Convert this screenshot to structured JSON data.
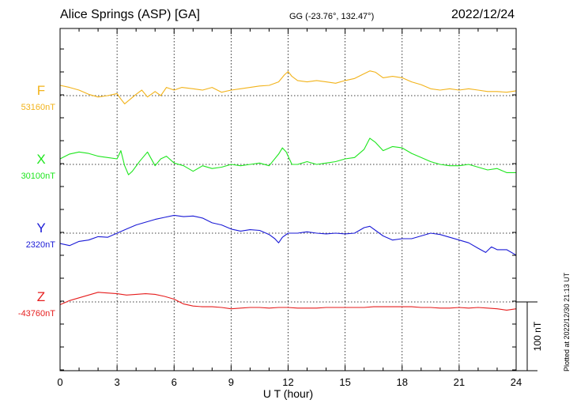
{
  "header": {
    "title": "Alice Springs (ASP)  [GA]",
    "coordinates": "GG (-23.76°, 132.47°)",
    "date": "2022/12/24"
  },
  "footer": {
    "plotted": "Plotted at 2022/12/30 21:13 UT"
  },
  "chart_data": {
    "type": "line",
    "xlabel": "U T (hour)",
    "xlim": [
      0,
      24
    ],
    "xticks": [
      0,
      3,
      6,
      9,
      12,
      15,
      18,
      21,
      24
    ],
    "grid": true,
    "scale_bar": {
      "label": "100 nT",
      "value_nT": 100
    },
    "series": [
      {
        "name": "F",
        "baseline_label": "53160nT",
        "baseline": 53160,
        "color": "#f2b31a",
        "x": [
          0,
          0.5,
          1,
          1.5,
          2,
          2.5,
          3,
          3.2,
          3.4,
          3.7,
          4.0,
          4.3,
          4.6,
          5.0,
          5.3,
          5.6,
          6.0,
          6.4,
          7.0,
          7.5,
          8.0,
          8.5,
          9.0,
          9.5,
          10.0,
          10.5,
          11.0,
          11.5,
          11.8,
          12.0,
          12.2,
          12.5,
          13.0,
          13.5,
          14.0,
          14.5,
          15.0,
          15.5,
          16.0,
          16.3,
          16.6,
          17.0,
          17.5,
          18.0,
          18.5,
          19.0,
          19.5,
          20.0,
          20.5,
          21.0,
          21.5,
          22.0,
          22.5,
          23.0,
          23.5,
          24.0
        ],
        "y": [
          53175,
          53172,
          53168,
          53162,
          53158,
          53160,
          53163,
          53155,
          53148,
          53155,
          53162,
          53168,
          53158,
          53166,
          53160,
          53172,
          53168,
          53172,
          53170,
          53168,
          53172,
          53165,
          53168,
          53170,
          53172,
          53174,
          53175,
          53180,
          53190,
          53195,
          53188,
          53182,
          53180,
          53182,
          53180,
          53178,
          53182,
          53185,
          53192,
          53196,
          53194,
          53186,
          53188,
          53186,
          53180,
          53176,
          53170,
          53168,
          53170,
          53168,
          53170,
          53168,
          53166,
          53166,
          53165,
          53167
        ]
      },
      {
        "name": "X",
        "baseline_label": "30100nT",
        "baseline": 30100,
        "color": "#1ee61e",
        "x": [
          0,
          0.5,
          1,
          1.5,
          2,
          2.5,
          3,
          3.2,
          3.4,
          3.6,
          3.8,
          4.2,
          4.6,
          5.0,
          5.3,
          5.6,
          6.0,
          6.5,
          7.0,
          7.5,
          8.0,
          8.5,
          9.0,
          9.5,
          10.0,
          10.5,
          11.0,
          11.5,
          11.7,
          11.9,
          12.2,
          12.5,
          13.0,
          13.5,
          14.0,
          14.5,
          15.0,
          15.5,
          16.0,
          16.3,
          16.6,
          17.0,
          17.5,
          18.0,
          18.5,
          19.0,
          19.5,
          20.0,
          20.5,
          21.0,
          21.5,
          22.0,
          22.5,
          23.0,
          23.5,
          24.0
        ],
        "y": [
          30108,
          30115,
          30118,
          30116,
          30112,
          30110,
          30108,
          30120,
          30098,
          30085,
          30090,
          30105,
          30118,
          30098,
          30108,
          30112,
          30102,
          30098,
          30090,
          30098,
          30094,
          30096,
          30100,
          30098,
          30100,
          30102,
          30098,
          30115,
          30124,
          30118,
          30100,
          30100,
          30104,
          30100,
          30102,
          30104,
          30108,
          30110,
          30122,
          30138,
          30132,
          30120,
          30126,
          30124,
          30116,
          30110,
          30104,
          30100,
          30098,
          30098,
          30100,
          30096,
          30092,
          30094,
          30088,
          30088
        ]
      },
      {
        "name": "Y",
        "baseline_label": "2320nT",
        "baseline": 2320,
        "color": "#1a1ad6",
        "x": [
          0,
          0.5,
          1,
          1.5,
          2,
          2.5,
          3,
          3.5,
          4.0,
          4.5,
          5.0,
          5.5,
          6.0,
          6.5,
          7.0,
          7.5,
          8.0,
          8.5,
          9.0,
          9.5,
          10.0,
          10.5,
          11.0,
          11.3,
          11.5,
          11.7,
          12.0,
          12.5,
          13.0,
          13.5,
          14.0,
          14.5,
          15.0,
          15.5,
          16.0,
          16.3,
          16.6,
          17.0,
          17.5,
          18.0,
          18.5,
          19.0,
          19.5,
          20.0,
          20.5,
          21.0,
          21.5,
          22.0,
          22.4,
          22.7,
          23.0,
          23.5,
          24.0
        ],
        "y": [
          2305,
          2302,
          2308,
          2310,
          2315,
          2314,
          2320,
          2326,
          2332,
          2336,
          2340,
          2343,
          2346,
          2344,
          2345,
          2342,
          2335,
          2332,
          2326,
          2323,
          2325,
          2324,
          2318,
          2312,
          2306,
          2314,
          2320,
          2320,
          2322,
          2320,
          2319,
          2320,
          2319,
          2320,
          2328,
          2330,
          2324,
          2316,
          2310,
          2312,
          2312,
          2316,
          2320,
          2318,
          2314,
          2310,
          2306,
          2298,
          2292,
          2300,
          2296,
          2296,
          2288
        ]
      },
      {
        "name": "Z",
        "baseline_label": "-43760nT",
        "baseline": -43760,
        "color": "#e61e1e",
        "x": [
          0,
          0.5,
          1,
          1.5,
          2,
          2.5,
          3,
          3.5,
          4.0,
          4.5,
          5.0,
          5.5,
          6.0,
          6.5,
          7.0,
          7.5,
          8.0,
          8.5,
          9.0,
          9.5,
          10.0,
          10.5,
          11.0,
          11.5,
          12.0,
          12.5,
          13.0,
          13.5,
          14.0,
          14.5,
          15.0,
          15.5,
          16.0,
          16.5,
          17.0,
          17.5,
          18.0,
          18.5,
          19.0,
          19.5,
          20.0,
          20.5,
          21.0,
          21.5,
          22.0,
          22.5,
          23.0,
          23.5,
          24.0
        ],
        "y": [
          -43764,
          -43758,
          -43754,
          -43750,
          -43746,
          -43747,
          -43748,
          -43750,
          -43749,
          -43748,
          -43749,
          -43752,
          -43756,
          -43763,
          -43766,
          -43767,
          -43767,
          -43768,
          -43770,
          -43769,
          -43768,
          -43768,
          -43769,
          -43768,
          -43768,
          -43769,
          -43769,
          -43769,
          -43768,
          -43768,
          -43768,
          -43768,
          -43768,
          -43767,
          -43767,
          -43767,
          -43767,
          -43767,
          -43768,
          -43768,
          -43769,
          -43769,
          -43768,
          -43769,
          -43768,
          -43769,
          -43770,
          -43772,
          -43770
        ]
      }
    ]
  }
}
